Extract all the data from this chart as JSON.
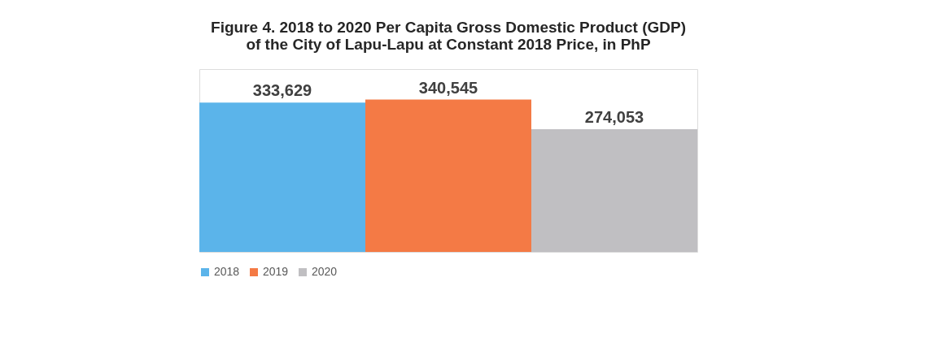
{
  "chart_data": {
    "type": "bar",
    "title": "Figure 4. 2018 to 2020 Per Capita Gross Domestic Product (GDP)\nof the City of Lapu-Lapu at Constant 2018 Price, in PhP",
    "categories": [
      null
    ],
    "series": [
      {
        "name": "2018",
        "color": "#5bb4ea",
        "values": [
          333629
        ],
        "value_labels": [
          "333,629"
        ]
      },
      {
        "name": "2019",
        "color": "#f47a45",
        "values": [
          340545
        ],
        "value_labels": [
          "340,545"
        ]
      },
      {
        "name": "2020",
        "color": "#c0bfc2",
        "values": [
          274053
        ],
        "value_labels": [
          "274,053"
        ]
      }
    ],
    "legend": "bottom"
  }
}
